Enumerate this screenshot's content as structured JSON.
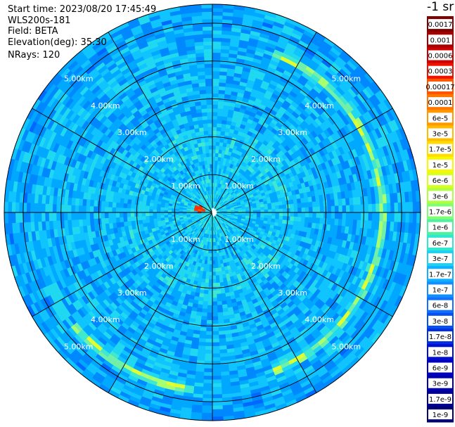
{
  "header": {
    "start_time": "Start time: 2023/08/20 17:45:49",
    "instrument": "WLS200s-181",
    "field": "Field: BETA",
    "elevation": "Elevation(deg): 35.30",
    "nrays": "NRays: 120"
  },
  "chart_data": {
    "type": "heatmap",
    "projection": "polar",
    "title": "",
    "field": "BETA",
    "elevation_deg": 35.3,
    "nrays": 120,
    "ring_labels": [
      "1.00km",
      "2.00km",
      "3.00km",
      "4.00km",
      "5.00km"
    ],
    "ring_distances_km": [
      1,
      2,
      3,
      4,
      5
    ],
    "max_range_km": 5.5,
    "spoke_angles_deg": [
      0,
      30,
      60,
      90,
      120,
      150,
      180,
      210,
      240,
      270,
      300,
      330
    ],
    "background_level": "1e-7 to 6e-7",
    "features": [
      {
        "name": "aerosol arc",
        "range_km": 4.5,
        "azimuth_from_deg": 20,
        "azimuth_to_deg": 160,
        "level": "1.7e-6 to 6e-6"
      },
      {
        "name": "aerosol arc",
        "range_km": 4.7,
        "azimuth_from_deg": 185,
        "azimuth_to_deg": 230,
        "level": "1.7e-6 to 6e-6"
      },
      {
        "name": "hot spot",
        "range_km": 0.35,
        "azimuth_deg": 285,
        "level": "1e-5 to 3e-5"
      }
    ],
    "colorbar": {
      "unit_label": "-1 sr",
      "ticks": [
        "0.0017",
        "0.001",
        "0.0006",
        "0.0003",
        "0.00017",
        "0.0001",
        "6e-5",
        "3e-5",
        "1.7e-5",
        "1e-5",
        "6e-6",
        "3e-6",
        "1.7e-6",
        "1e-6",
        "6e-7",
        "3e-7",
        "1.7e-7",
        "1e-7",
        "6e-8",
        "3e-8",
        "1.7e-8",
        "1e-8",
        "6e-9",
        "3e-9",
        "1.7e-9",
        "1e-9"
      ],
      "colors": [
        "#800000",
        "#a80000",
        "#cc0000",
        "#ee1100",
        "#ff5500",
        "#ff7700",
        "#ff9900",
        "#ffbb00",
        "#ffdd00",
        "#f8f800",
        "#d8ff20",
        "#b0ff40",
        "#80ff70",
        "#50f0a0",
        "#30e8d0",
        "#20d0f0",
        "#10b0ff",
        "#1090ff",
        "#1070ff",
        "#0850f0",
        "#0030e0",
        "#0010d0",
        "#0000c0",
        "#0000a8",
        "#000090",
        "#000070"
      ]
    }
  }
}
